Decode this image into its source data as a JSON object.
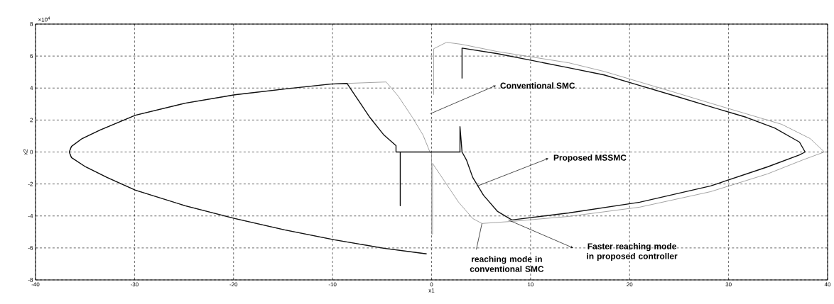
{
  "chart_data": {
    "type": "line",
    "xlabel": "x1",
    "ylabel": "x2",
    "xlim": [
      -40,
      40
    ],
    "ylim": [
      -8,
      8
    ],
    "xticks": [
      -40,
      -30,
      -20,
      -10,
      0,
      10,
      20,
      30,
      40
    ],
    "yticks": [
      -8,
      -6,
      -4,
      -2,
      0,
      2,
      4,
      6,
      8
    ],
    "grid": true,
    "marker": "none",
    "series": [
      {
        "color": "#8c8c8c",
        "x": [
          -0.5,
          -4.81,
          -9.83,
          -14.85,
          -19.87,
          -24.89,
          -29.91,
          -32.78,
          -34.94,
          -36.37,
          -36.59,
          -36.37,
          -35.29,
          -33.5,
          -29.91,
          -24.89,
          -19.87,
          -14.85,
          -10.19,
          -8.54,
          -4.59,
          -3.37,
          -1.94,
          -0.86,
          -0.14,
          0,
          0,
          0.1,
          0.1,
          1.29,
          2.73,
          4.16,
          5.09,
          8.11,
          13.85,
          21.02,
          28.19,
          33.93,
          37.52,
          39.67,
          38.24,
          35.37,
          31.78,
          28.19,
          24.61,
          21.02,
          17.43,
          13.85,
          10.26,
          6.67,
          3.08,
          1.51,
          0.22,
          0.22
        ],
        "values": [
          -6.37,
          -6.02,
          -5.49,
          -4.87,
          -4.16,
          -3.36,
          -2.39,
          -1.59,
          -0.93,
          -0.35,
          0,
          0.35,
          0.84,
          1.37,
          2.3,
          3.05,
          3.58,
          3.94,
          4.25,
          4.29,
          4.38,
          3.5,
          2.17,
          1.06,
          -0.04,
          -0.04,
          -5.13,
          -5.13,
          -0.71,
          -1.81,
          -3.14,
          -4.16,
          -4.47,
          -4.34,
          -4.03,
          -3.45,
          -2.48,
          -1.37,
          -0.49,
          0,
          0.84,
          1.73,
          2.39,
          3.05,
          3.72,
          4.38,
          5.04,
          5.58,
          5.93,
          6.28,
          6.73,
          6.86,
          6.46,
          3.58
        ]
      },
      {
        "color": "#111111",
        "x": [
          -0.5,
          -4.81,
          -9.83,
          -14.85,
          -19.87,
          -24.89,
          -29.91,
          -32.78,
          -34.94,
          -36.37,
          -36.59,
          -36.37,
          -35.29,
          -33.5,
          -29.91,
          -24.89,
          -19.87,
          -14.85,
          -10.19,
          -8.54,
          -7.68,
          -6.24,
          -4.81,
          -3.59,
          -3.59,
          -3.16,
          -3.16,
          -3.16,
          2.87,
          2.87,
          3.08,
          3.52,
          4.16,
          5.24,
          6.67,
          8.11,
          13.85,
          21.02,
          28.19,
          33.93,
          37.16,
          37.73,
          37.16,
          34.65,
          31.78,
          28.19,
          24.61,
          21.02,
          17.43,
          13.85,
          10.26,
          6.67,
          3.08,
          3.08
        ],
        "values": [
          -6.37,
          -6.02,
          -5.49,
          -4.87,
          -4.16,
          -3.36,
          -2.39,
          -1.59,
          -0.93,
          -0.35,
          0,
          0.35,
          0.84,
          1.37,
          2.3,
          3.05,
          3.58,
          3.94,
          4.25,
          4.29,
          3.5,
          2.17,
          1.06,
          0.4,
          0,
          0,
          -3.36,
          0,
          0,
          1.59,
          0,
          -0.49,
          -1.59,
          -2.7,
          -3.72,
          -4.25,
          -3.81,
          -3.14,
          -2.12,
          -0.93,
          -0.18,
          0,
          0.62,
          1.5,
          2.17,
          2.83,
          3.5,
          4.16,
          4.82,
          5.27,
          5.71,
          6.15,
          6.5,
          4.6
        ]
      }
    ],
    "annotations": [
      "×10$^{4}$",
      "Conventional SMC",
      {
        "text": "Proposed MSSMC",
        "x": 4.66,
        "y": -2.12
      },
      "Faster reaching mode in proposed controller",
      {
        "text": "reaching mode in conventional SMC",
        "x": 5.09,
        "y": -4.47
      }
    ]
  }
}
